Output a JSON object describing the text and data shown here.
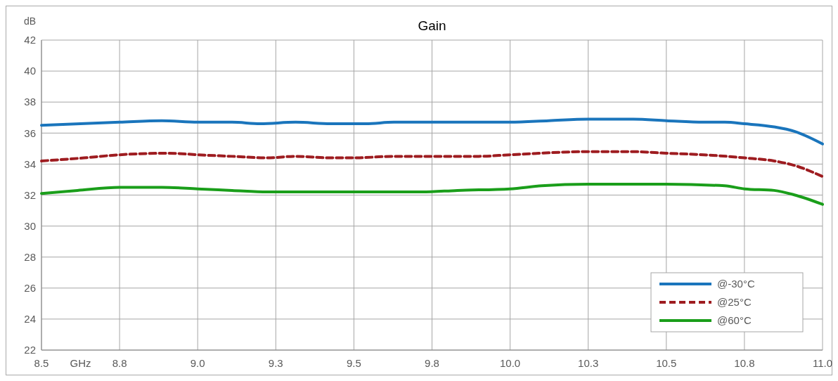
{
  "chart_data": {
    "type": "line",
    "title": "Gain",
    "xlabel": "GHz",
    "ylabel": "dB",
    "xlim": [
      8.5,
      11
    ],
    "ylim": [
      22,
      42
    ],
    "xticks": [
      8.5,
      {
        "value": 8.75,
        "label": "8.8"
      },
      {
        "value": 9,
        "label": "9.0"
      },
      {
        "value": 9.25,
        "label": "9.3"
      },
      {
        "value": 9.5,
        "label": "9.5"
      },
      {
        "value": 9.75,
        "label": "9.8"
      },
      {
        "value": 10,
        "label": "10.0"
      },
      {
        "value": 10.25,
        "label": "10.3"
      },
      {
        "value": 10.5,
        "label": "10.5"
      },
      {
        "value": 10.75,
        "label": "10.8"
      },
      {
        "value": 11,
        "label": "11.0"
      }
    ],
    "yticks": [
      22,
      24,
      26,
      28,
      30,
      32,
      34,
      36,
      38,
      40,
      42
    ],
    "grid": true,
    "legend": "bottom right",
    "marker": "none",
    "series": [
      {
        "name": "@-30°C",
        "color": "#1a75bc",
        "line_style": "solid",
        "x": [
          8.5,
          8.75,
          8.885,
          9.0,
          9.11,
          9.2,
          9.313,
          9.426,
          9.538,
          9.628,
          9.75,
          9.9,
          10.0,
          10.124,
          10.25,
          10.394,
          10.5,
          10.62,
          10.687,
          10.75,
          10.845,
          10.912,
          11.0
        ],
        "values": [
          36.5,
          36.7,
          36.8,
          36.7,
          36.7,
          36.6,
          36.7,
          36.6,
          36.6,
          36.7,
          36.7,
          36.7,
          36.7,
          36.8,
          36.9,
          36.9,
          36.8,
          36.7,
          36.7,
          36.6,
          36.4,
          36.1,
          35.3
        ]
      },
      {
        "name": "@25°C",
        "color": "#9e1c20",
        "line_style": "dashed",
        "x": [
          8.5,
          8.637,
          8.75,
          8.908,
          9.0,
          9.11,
          9.223,
          9.313,
          9.426,
          9.5,
          9.628,
          9.75,
          9.9,
          10.0,
          10.25,
          10.394,
          10.5,
          10.62,
          10.75,
          10.845,
          10.912,
          11.0
        ],
        "values": [
          34.2,
          34.4,
          34.6,
          34.7,
          34.6,
          34.5,
          34.4,
          34.5,
          34.4,
          34.4,
          34.5,
          34.5,
          34.5,
          34.6,
          34.8,
          34.8,
          34.7,
          34.6,
          34.4,
          34.2,
          33.9,
          33.2
        ]
      },
      {
        "name": "@60°C",
        "color": "#1a9e1a",
        "line_style": "solid",
        "x": [
          8.5,
          8.615,
          8.75,
          8.885,
          9.0,
          9.11,
          9.223,
          9.5,
          9.718,
          9.831,
          10.0,
          10.101,
          10.25,
          10.5,
          10.687,
          10.75,
          10.845,
          10.912,
          11.0
        ],
        "values": [
          32.1,
          32.3,
          32.5,
          32.5,
          32.4,
          32.3,
          32.2,
          32.2,
          32.2,
          32.3,
          32.4,
          32.6,
          32.7,
          32.7,
          32.6,
          32.4,
          32.3,
          32.0,
          31.4
        ]
      }
    ]
  }
}
